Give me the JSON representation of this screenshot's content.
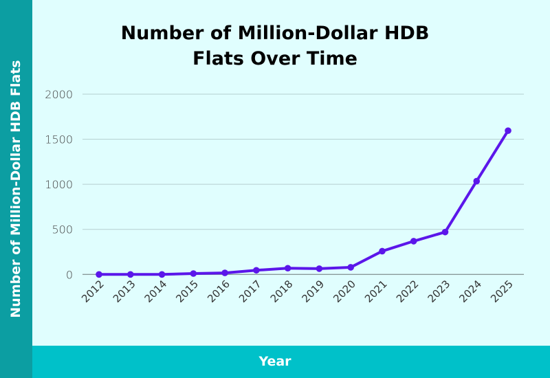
{
  "chart_data": {
    "type": "line",
    "title": "Number of Million-Dollar HDB Flats Over Time",
    "xlabel": "Year",
    "ylabel": "Number of Million-Dollar HDB Flats",
    "categories": [
      "2012",
      "2013",
      "2014",
      "2015",
      "2016",
      "2017",
      "2018",
      "2019",
      "2020",
      "2021",
      "2022",
      "2023",
      "2024",
      "2025"
    ],
    "values": [
      0,
      0,
      0,
      10,
      17,
      46,
      69,
      64,
      79,
      258,
      369,
      470,
      1035,
      1595
    ],
    "ylim": [
      0,
      2000
    ],
    "yticks": [
      0,
      500,
      1000,
      1500,
      2000
    ],
    "grid": true,
    "legend": "none",
    "colors": {
      "line": "#5b16ea",
      "background": "#e0fefe",
      "band_left": "#0c9ea2",
      "band_bottom": "#00c1c9"
    }
  }
}
